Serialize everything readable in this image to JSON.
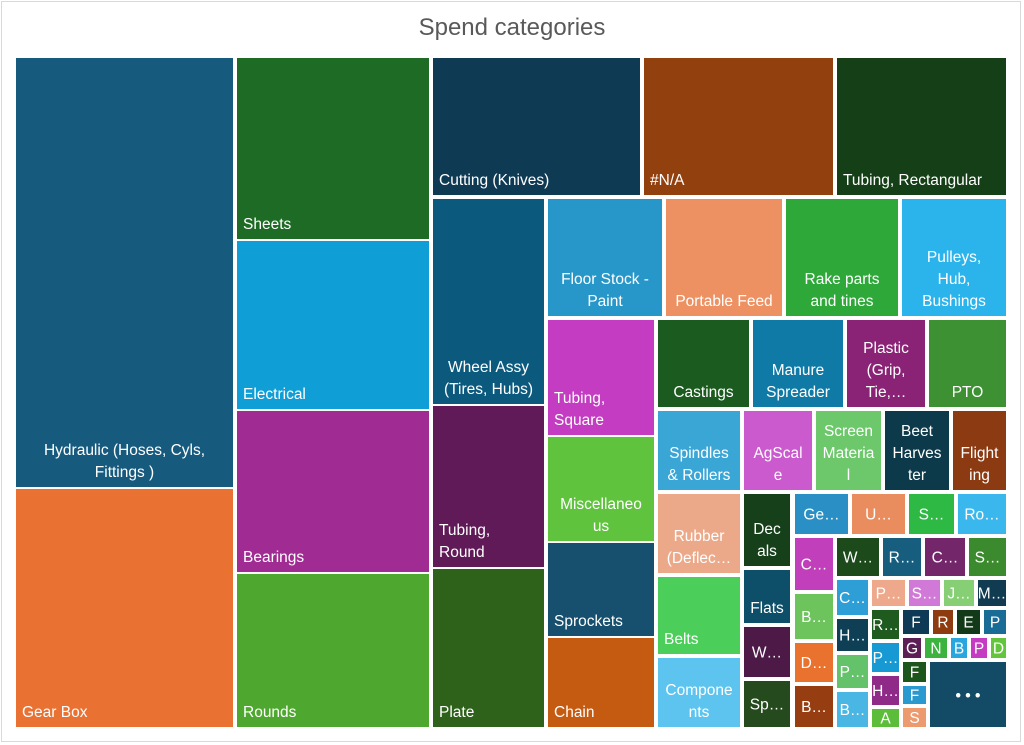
{
  "chart_data": {
    "type": "treemap",
    "title": "Spend categories",
    "more_indicator": "• • •",
    "items": [
      {
        "label": "Hydraulic (Hoses, Cyls, Fittings )",
        "color": "#165a7e"
      },
      {
        "label": "Gear Box",
        "color": "#e97132"
      },
      {
        "label": "Sheets",
        "color": "#1d6b24"
      },
      {
        "label": "Electrical",
        "color": "#0f9ed5"
      },
      {
        "label": "Bearings",
        "color": "#a02b93"
      },
      {
        "label": "Rounds",
        "color": "#4ea72e"
      },
      {
        "label": "Cutting (Knives)",
        "color": "#0e3a54"
      },
      {
        "label": "#N/A",
        "color": "#93400f"
      },
      {
        "label": "Tubing, Rectangular",
        "color": "#153f17"
      },
      {
        "label": "Wheel Assy (Tires, Hubs)",
        "color": "#0b5a7e"
      },
      {
        "label": "Tubing, Round",
        "color": "#601a57"
      },
      {
        "label": "Plate",
        "color": "#2e621b"
      },
      {
        "label": "Floor Stock - Paint",
        "color": "#2796c9"
      },
      {
        "label": "Portable Feed",
        "color": "#ed9163"
      },
      {
        "label": "Rake parts and tines",
        "color": "#2ea839"
      },
      {
        "label": "Pulleys, Hub, Bushings",
        "color": "#2bb4ec"
      },
      {
        "label": "Tubing, Square",
        "color": "#c33cc1"
      },
      {
        "label": "Miscellaneous",
        "color": "#5fc33d"
      },
      {
        "label": "Sprockets",
        "color": "#16506e"
      },
      {
        "label": "Chain",
        "color": "#c55a11"
      },
      {
        "label": "Castings",
        "color": "#1b5b1f"
      },
      {
        "label": "Manure Spreader",
        "color": "#107aa7"
      },
      {
        "label": "Plastic (Grip, Tie,…",
        "color": "#8a2376"
      },
      {
        "label": "PTO",
        "color": "#3d9132"
      },
      {
        "label": "Spindles & Rollers",
        "color": "#39a6d6"
      },
      {
        "label": "AgScale",
        "color": "#cb5acf"
      },
      {
        "label": "Screen Material",
        "color": "#6cc86a"
      },
      {
        "label": "Beet Harvester",
        "color": "#0d3a4a"
      },
      {
        "label": "Flighting",
        "color": "#8c3a11"
      },
      {
        "label": "Rubber (Deflec…",
        "color": "#eca98a"
      },
      {
        "label": "Decals",
        "color": "#15401a"
      },
      {
        "label": "Flats",
        "color": "#0d4e68"
      },
      {
        "label": "Belts",
        "color": "#4bce5a"
      },
      {
        "label": "Components",
        "color": "#5cc4ef"
      },
      {
        "label": "W…",
        "color": "#4d1a48"
      },
      {
        "label": "Sp…",
        "color": "#254a1d"
      },
      {
        "label": "Ge…",
        "color": "#2a8fc4"
      },
      {
        "label": "U…",
        "color": "#e98d5e"
      },
      {
        "label": "S…",
        "color": "#2eb944"
      },
      {
        "label": "Ro…",
        "color": "#3ab8ed"
      },
      {
        "label": "C…",
        "color": "#c23fbc"
      },
      {
        "label": "W…",
        "color": "#1c4a1a"
      },
      {
        "label": "R…",
        "color": "#175e7e"
      },
      {
        "label": "C…",
        "color": "#73266a"
      },
      {
        "label": "S…",
        "color": "#3c8a2e"
      },
      {
        "label": "B…",
        "color": "#6ec45c"
      },
      {
        "label": "C…",
        "color": "#2d9fd6"
      },
      {
        "label": "H…",
        "color": "#eea98c"
      },
      {
        "label": "P…",
        "color": "#d179d6"
      },
      {
        "label": "S…",
        "color": "#86cf74"
      },
      {
        "label": "J…",
        "color": "#103b50"
      },
      {
        "label": "M…",
        "color": "#e9722f"
      },
      {
        "label": "D…",
        "color": "#0f3f55"
      },
      {
        "label": "R…",
        "color": "#1f5a1f"
      },
      {
        "label": "F",
        "color": "#0e3a56"
      },
      {
        "label": "R",
        "color": "#8f3b10"
      },
      {
        "label": "E",
        "color": "#133a18"
      },
      {
        "label": "P",
        "color": "#186c96"
      },
      {
        "label": "P…",
        "color": "#64c26a"
      },
      {
        "label": "P…",
        "color": "#1799d4"
      },
      {
        "label": "G",
        "color": "#5c1f55"
      },
      {
        "label": "N",
        "color": "#3cb33e"
      },
      {
        "label": "B",
        "color": "#28a6dd"
      },
      {
        "label": "P",
        "color": "#c53cc3"
      },
      {
        "label": "D",
        "color": "#62c53c"
      },
      {
        "label": "B…",
        "color": "#963e12"
      },
      {
        "label": "B…",
        "color": "#4ab6e3"
      },
      {
        "label": "H…",
        "color": "#8f2a88"
      },
      {
        "label": "F",
        "color": "#1d561c"
      },
      {
        "label": "F",
        "color": "#2a99d0"
      },
      {
        "label": "A",
        "color": "#5cbd3b"
      },
      {
        "label": "S",
        "color": "#ec9a6e"
      },
      {
        "label": "",
        "color": "#134a66"
      }
    ]
  }
}
